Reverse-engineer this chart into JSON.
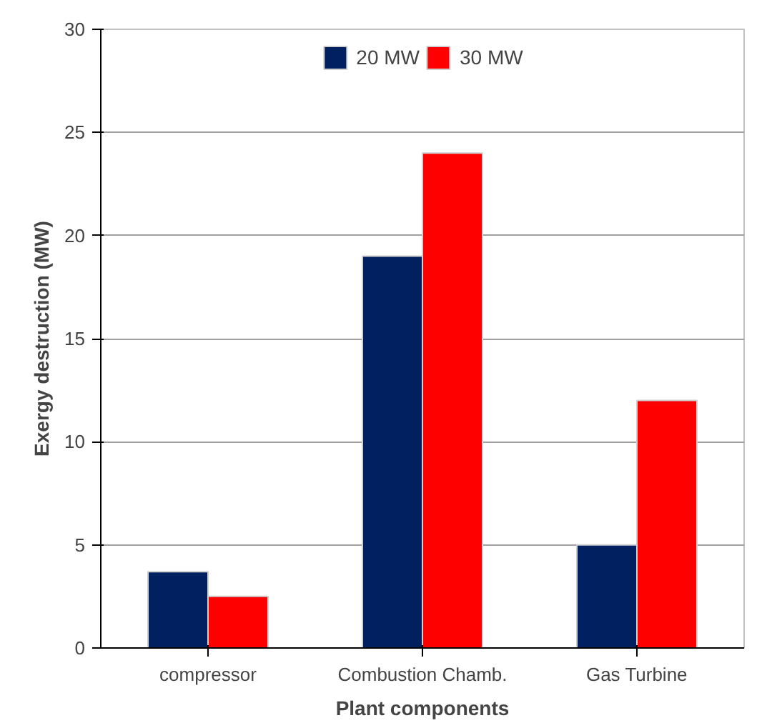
{
  "chart_data": {
    "type": "bar",
    "xlabel": "Plant components",
    "ylabel": "Exergy destruction (MW)",
    "categories": [
      "compressor",
      "Combustion Chamb.",
      "Gas Turbine"
    ],
    "series": [
      {
        "name": "20 MW",
        "color": "#002060",
        "values": [
          3.7,
          19.0,
          5.0
        ]
      },
      {
        "name": "30 MW",
        "color": "#ff0000",
        "values": [
          2.5,
          24.0,
          12.0
        ]
      }
    ],
    "ylim": [
      0,
      30
    ],
    "yticks": [
      0,
      5,
      10,
      15,
      20,
      25,
      30
    ],
    "grid": "y",
    "legend": "top"
  }
}
